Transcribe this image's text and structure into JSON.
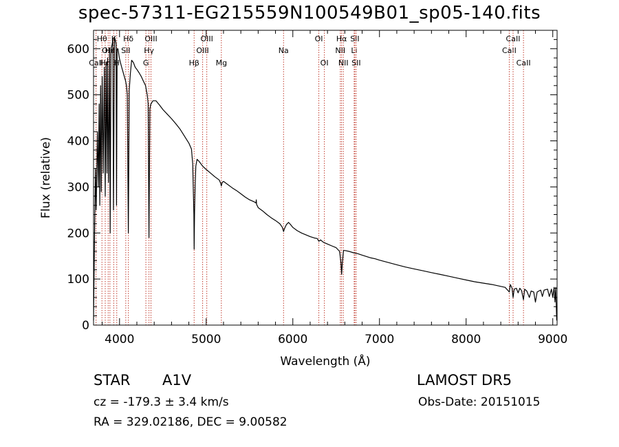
{
  "title": "spec-57311-EG215559N100549B01_sp05-140.fits",
  "info": {
    "class_label": "STAR",
    "subclass_label": "A1V",
    "survey_label": "LAMOST DR5",
    "cz_text": "cz = -179.3 ± 3.4 km/s",
    "obs_date_text": "Obs-Date: 20151015",
    "radec_text": "RA = 329.02186, DEC =   9.00582"
  },
  "chart_data": {
    "type": "line",
    "title": "spec-57311-EG215559N100549B01_sp05-140.fits",
    "xlabel": "Wavelength (Å)",
    "ylabel": "Flux (relative)",
    "xlim": [
      3700,
      9050
    ],
    "ylim": [
      0,
      640
    ],
    "x_ticks": [
      4000,
      5000,
      6000,
      7000,
      8000,
      9000
    ],
    "y_ticks": [
      0,
      100,
      200,
      300,
      400,
      500,
      600
    ],
    "grid": false,
    "line_color": "#000000",
    "marker_color": "#c0392b",
    "series": [
      {
        "points": [
          [
            3700,
            10
          ],
          [
            3712,
            200
          ],
          [
            3722,
            340
          ],
          [
            3730,
            250
          ],
          [
            3745,
            420
          ],
          [
            3755,
            300
          ],
          [
            3765,
            480
          ],
          [
            3772,
            260
          ],
          [
            3782,
            520
          ],
          [
            3790,
            290
          ],
          [
            3800,
            540
          ],
          [
            3812,
            330
          ],
          [
            3825,
            560
          ],
          [
            3835,
            280
          ],
          [
            3845,
            570
          ],
          [
            3855,
            330
          ],
          [
            3862,
            580
          ],
          [
            3872,
            310
          ],
          [
            3885,
            590
          ],
          [
            3892,
            200
          ],
          [
            3902,
            600
          ],
          [
            3915,
            610
          ],
          [
            3922,
            620
          ],
          [
            3930,
            250
          ],
          [
            3942,
            625
          ],
          [
            3950,
            620
          ],
          [
            3960,
            610
          ],
          [
            3965,
            260
          ],
          [
            3972,
            600
          ],
          [
            3982,
            600
          ],
          [
            3990,
            590
          ],
          [
            3998,
            580
          ],
          [
            4010,
            570
          ],
          [
            4025,
            560
          ],
          [
            4040,
            550
          ],
          [
            4055,
            540
          ],
          [
            4070,
            530
          ],
          [
            4080,
            520
          ],
          [
            4090,
            500
          ],
          [
            4102,
            200
          ],
          [
            4112,
            510
          ],
          [
            4125,
            545
          ],
          [
            4140,
            575
          ],
          [
            4160,
            570
          ],
          [
            4180,
            560
          ],
          [
            4200,
            555
          ],
          [
            4225,
            548
          ],
          [
            4250,
            540
          ],
          [
            4275,
            530
          ],
          [
            4300,
            520
          ],
          [
            4320,
            500
          ],
          [
            4330,
            480
          ],
          [
            4340,
            190
          ],
          [
            4350,
            470
          ],
          [
            4362,
            480
          ],
          [
            4385,
            487
          ],
          [
            4420,
            487
          ],
          [
            4460,
            478
          ],
          [
            4500,
            468
          ],
          [
            4550,
            458
          ],
          [
            4600,
            448
          ],
          [
            4650,
            437
          ],
          [
            4700,
            425
          ],
          [
            4750,
            410
          ],
          [
            4800,
            395
          ],
          [
            4830,
            382
          ],
          [
            4845,
            350
          ],
          [
            4852,
            290
          ],
          [
            4858,
            240
          ],
          [
            4861,
            165
          ],
          [
            4866,
            245
          ],
          [
            4872,
            300
          ],
          [
            4880,
            345
          ],
          [
            4895,
            360
          ],
          [
            4920,
            355
          ],
          [
            4960,
            345
          ],
          [
            5000,
            338
          ],
          [
            5050,
            330
          ],
          [
            5100,
            322
          ],
          [
            5150,
            315
          ],
          [
            5167,
            308
          ],
          [
            5175,
            302
          ],
          [
            5185,
            310
          ],
          [
            5200,
            312
          ],
          [
            5250,
            305
          ],
          [
            5300,
            298
          ],
          [
            5350,
            292
          ],
          [
            5400,
            285
          ],
          [
            5450,
            278
          ],
          [
            5500,
            272
          ],
          [
            5550,
            268
          ],
          [
            5575,
            265
          ],
          [
            5578,
            272
          ],
          [
            5582,
            262
          ],
          [
            5600,
            255
          ],
          [
            5650,
            248
          ],
          [
            5700,
            240
          ],
          [
            5750,
            233
          ],
          [
            5800,
            227
          ],
          [
            5850,
            220
          ],
          [
            5880,
            212
          ],
          [
            5893,
            203
          ],
          [
            5905,
            210
          ],
          [
            5925,
            218
          ],
          [
            5950,
            223
          ],
          [
            5975,
            218
          ],
          [
            6000,
            212
          ],
          [
            6050,
            205
          ],
          [
            6100,
            200
          ],
          [
            6150,
            196
          ],
          [
            6200,
            192
          ],
          [
            6250,
            189
          ],
          [
            6282,
            188
          ],
          [
            6300,
            182
          ],
          [
            6320,
            185
          ],
          [
            6350,
            180
          ],
          [
            6400,
            176
          ],
          [
            6450,
            172
          ],
          [
            6500,
            168
          ],
          [
            6540,
            160
          ],
          [
            6555,
            135
          ],
          [
            6563,
            110
          ],
          [
            6571,
            135
          ],
          [
            6585,
            162
          ],
          [
            6600,
            162
          ],
          [
            6650,
            160
          ],
          [
            6700,
            157
          ],
          [
            6750,
            155
          ],
          [
            6800,
            152
          ],
          [
            6850,
            149
          ],
          [
            6900,
            146
          ],
          [
            6950,
            144
          ],
          [
            7000,
            141
          ],
          [
            7100,
            136
          ],
          [
            7200,
            131
          ],
          [
            7300,
            126
          ],
          [
            7400,
            122
          ],
          [
            7500,
            118
          ],
          [
            7600,
            114
          ],
          [
            7700,
            110
          ],
          [
            7800,
            106
          ],
          [
            7900,
            102
          ],
          [
            8000,
            98
          ],
          [
            8100,
            94
          ],
          [
            8200,
            91
          ],
          [
            8300,
            88
          ],
          [
            8400,
            84
          ],
          [
            8450,
            82
          ],
          [
            8498,
            72
          ],
          [
            8510,
            88
          ],
          [
            8530,
            80
          ],
          [
            8542,
            60
          ],
          [
            8555,
            78
          ],
          [
            8580,
            80
          ],
          [
            8600,
            70
          ],
          [
            8620,
            80
          ],
          [
            8640,
            75
          ],
          [
            8662,
            55
          ],
          [
            8675,
            78
          ],
          [
            8700,
            74
          ],
          [
            8730,
            60
          ],
          [
            8750,
            74
          ],
          [
            8780,
            72
          ],
          [
            8800,
            50
          ],
          [
            8820,
            72
          ],
          [
            8860,
            76
          ],
          [
            8880,
            62
          ],
          [
            8900,
            76
          ],
          [
            8940,
            78
          ],
          [
            8960,
            62
          ],
          [
            8985,
            78
          ],
          [
            9000,
            60
          ],
          [
            9015,
            82
          ],
          [
            9025,
            50
          ],
          [
            9035,
            82
          ],
          [
            9045,
            10
          ]
        ]
      }
    ],
    "line_markers": [
      {
        "name": "CaII",
        "wavelength": 3729,
        "row": 2
      },
      {
        "name": "Hθ",
        "wavelength": 3797,
        "row": 0
      },
      {
        "name": "Hη",
        "wavelength": 3835,
        "row": 2
      },
      {
        "name": "OIII",
        "wavelength": 3869,
        "row": 1
      },
      {
        "name": "Hε",
        "wavelength": 3889,
        "row": 1
      },
      {
        "name": "K",
        "wavelength": 3933,
        "row": 0
      },
      {
        "name": "H",
        "wavelength": 3968,
        "row": 2
      },
      {
        "name": "SII",
        "wavelength": 4072,
        "row": 1
      },
      {
        "name": "Hδ",
        "wavelength": 4102,
        "row": 0
      },
      {
        "name": "G",
        "wavelength": 4304,
        "row": 2
      },
      {
        "name": "Hγ",
        "wavelength": 4340,
        "row": 1
      },
      {
        "name": "OIII",
        "wavelength": 4363,
        "row": 0
      },
      {
        "name": "Hβ",
        "wavelength": 4861,
        "row": 2
      },
      {
        "name": "OIII",
        "wavelength": 4959,
        "row": 1
      },
      {
        "name": "OIII",
        "wavelength": 5007,
        "row": 0
      },
      {
        "name": "Mg",
        "wavelength": 5175,
        "row": 2
      },
      {
        "name": "Na",
        "wavelength": 5893,
        "row": 1
      },
      {
        "name": "OI",
        "wavelength": 6300,
        "row": 0
      },
      {
        "name": "OI",
        "wavelength": 6364,
        "row": 2
      },
      {
        "name": "NII",
        "wavelength": 6548,
        "row": 1
      },
      {
        "name": "Hα",
        "wavelength": 6563,
        "row": 0
      },
      {
        "name": "NII",
        "wavelength": 6583,
        "row": 2
      },
      {
        "name": "Li",
        "wavelength": 6708,
        "row": 1
      },
      {
        "name": "SII",
        "wavelength": 6716,
        "row": 0
      },
      {
        "name": "SII",
        "wavelength": 6731,
        "row": 2
      },
      {
        "name": "CaII",
        "wavelength": 8498,
        "row": 1
      },
      {
        "name": "CaII",
        "wavelength": 8542,
        "row": 0
      },
      {
        "name": "CaII",
        "wavelength": 8662,
        "row": 2
      }
    ]
  }
}
